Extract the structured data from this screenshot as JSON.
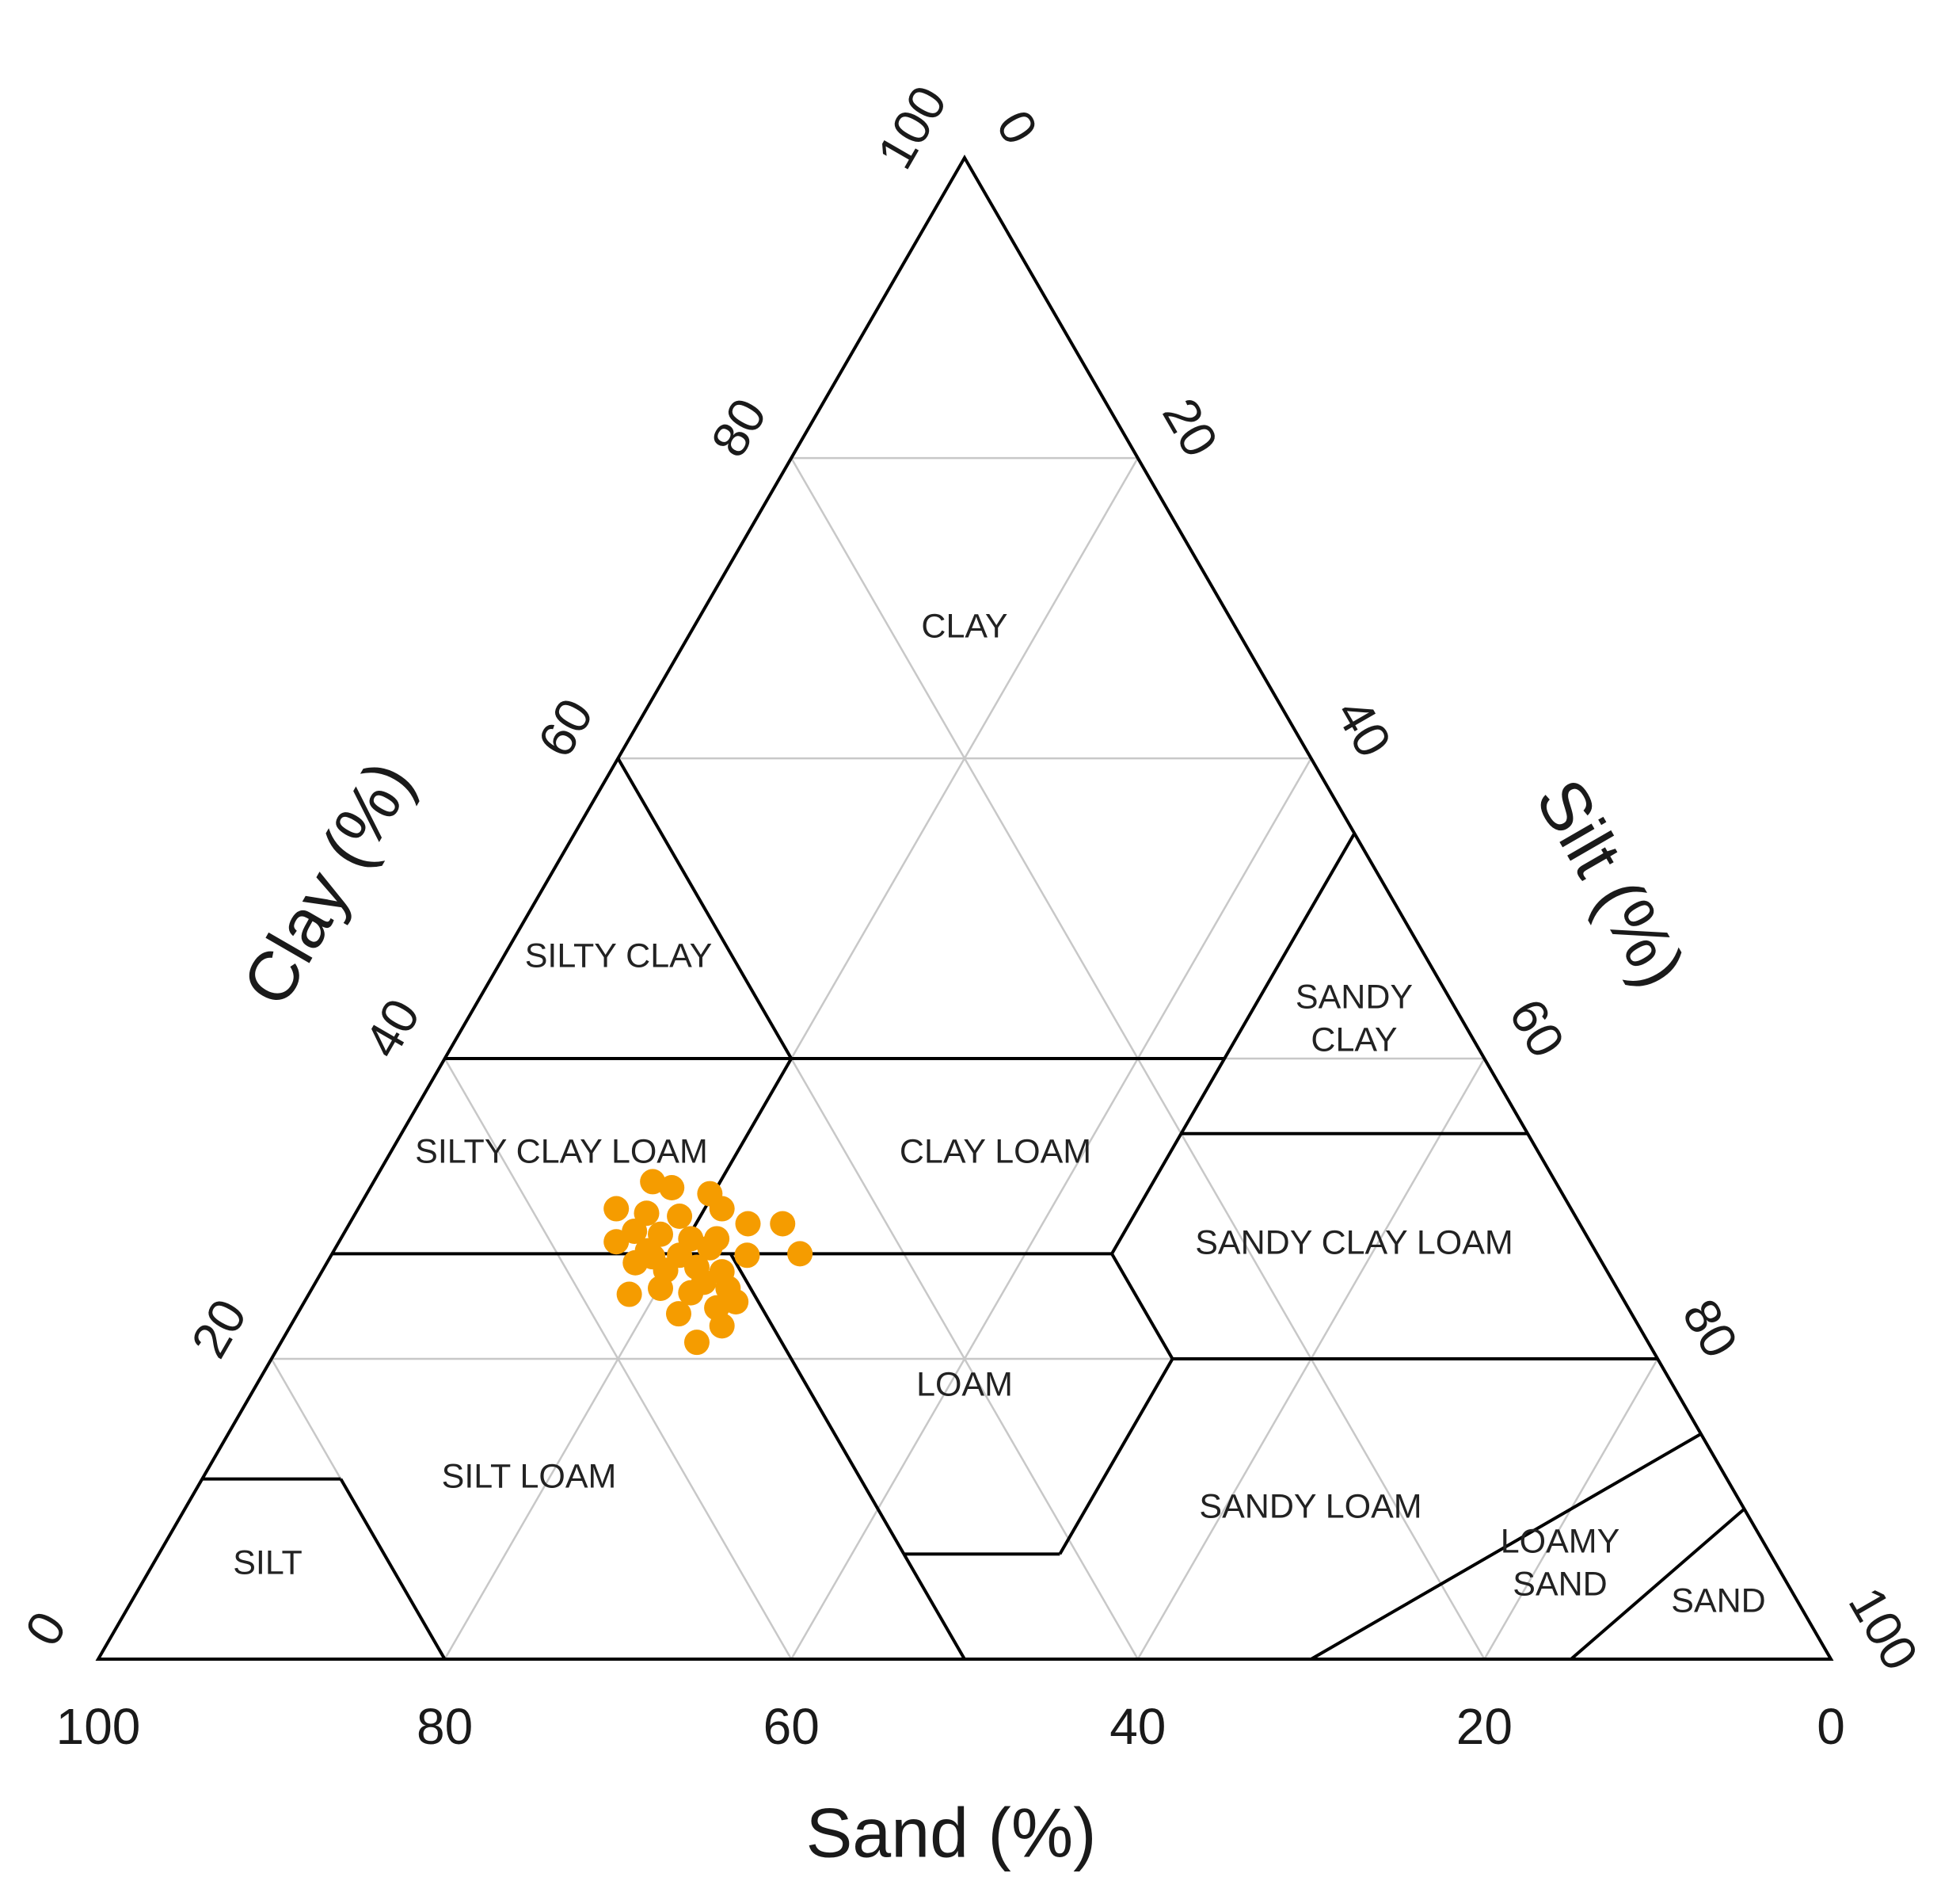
{
  "chart_data": {
    "type": "ternary",
    "axes": {
      "clay": {
        "title": "Clay (%)",
        "lim": [
          0,
          100
        ],
        "ticks": [
          0,
          20,
          40,
          60,
          80,
          100
        ]
      },
      "silt": {
        "title": "Silt (%)",
        "lim": [
          0,
          100
        ],
        "ticks": [
          0,
          20,
          40,
          60,
          80,
          100
        ]
      },
      "sand": {
        "title": "Sand (%)",
        "lim": [
          0,
          100
        ],
        "ticks": [
          100,
          80,
          60,
          40,
          20,
          0
        ]
      }
    },
    "grid": true,
    "regions": [
      [
        "CLAY"
      ],
      [
        "SILTY CLAY"
      ],
      [
        "SANDY",
        "CLAY"
      ],
      [
        "SILTY CLAY LOAM"
      ],
      [
        "CLAY LOAM"
      ],
      [
        "SANDY CLAY LOAM"
      ],
      [
        "LOAM"
      ],
      [
        "SILT LOAM"
      ],
      [
        "SANDY LOAM"
      ],
      [
        "SILT"
      ],
      [
        "LOAMY",
        "SAND"
      ],
      [
        "SAND"
      ]
    ],
    "points": {
      "color": "#f59c00",
      "clay": [
        31.8,
        31.4,
        31.0,
        30.0,
        29.7,
        29.5,
        30.0,
        29.0,
        29.0,
        28.5,
        28.3,
        28.0,
        28.0,
        27.8,
        27.2,
        26.9,
        27.4,
        26.9,
        27.0,
        26.4,
        25.9,
        26.1,
        25.8,
        24.3,
        24.7,
        24.4,
        24.7,
        23.0,
        23.4,
        23.8,
        22.2,
        21.1,
        26.8,
        25.1
      ],
      "silt": [
        16.1,
        17.4,
        19.8,
        14.9,
        16.8,
        18.8,
        21.0,
        23.0,
        25.0,
        16.7,
        18.3,
        20.2,
        21.7,
        16.0,
        18.1,
        20.1,
        21.6,
        24.0,
        27.0,
        17.8,
        19.8,
        21.5,
        23.1,
        18.5,
        20.1,
        22.0,
        24.0,
        22.0,
        24.0,
        24.9,
        24.9,
        24.0,
        18.6,
        22.4
      ]
    }
  }
}
